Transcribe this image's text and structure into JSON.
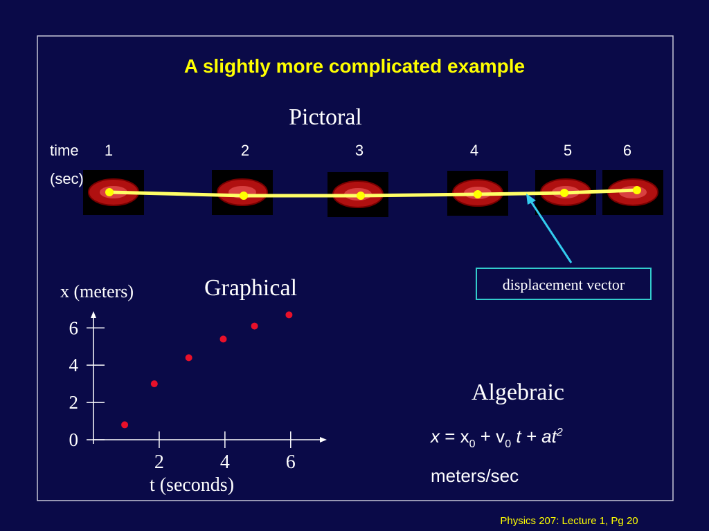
{
  "title": "A slightly more complicated example",
  "footer": "Physics 207: Lecture 1, Pg 20",
  "pictoral": {
    "heading": "Pictoral",
    "time_label": "time",
    "unit_label": "(sec)",
    "times": [
      1,
      2,
      3,
      4,
      5,
      6
    ]
  },
  "callout": "displacement vector",
  "algebraic": {
    "heading": "Algebraic",
    "lhs": "x",
    "eq": " = x",
    "sub1": "0",
    "plus": " + v",
    "sub2": "0",
    "t": " t",
    "plus2": " + at",
    "sup": "2",
    "units": "meters/sec"
  },
  "chart_data": {
    "type": "scatter",
    "title": "Graphical",
    "y_label": "x (meters)",
    "x_label": "t (seconds)",
    "x": [
      0.95,
      1.85,
      2.9,
      3.95,
      4.9,
      5.95
    ],
    "values": [
      0.8,
      3.0,
      4.4,
      5.4,
      6.1,
      6.7
    ],
    "color": "#e8102a",
    "xlim": [
      0,
      7.1
    ],
    "ylim": [
      0,
      6.9
    ],
    "xticks": [
      2,
      4,
      6
    ],
    "yticks": [
      0,
      2,
      4,
      6
    ]
  }
}
